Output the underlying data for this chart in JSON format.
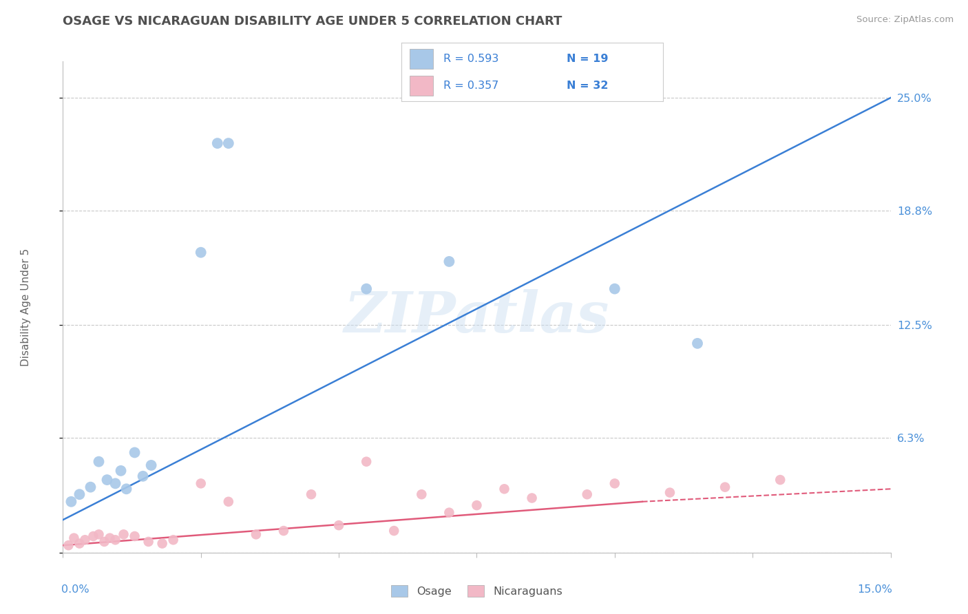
{
  "title": "OSAGE VS NICARAGUAN DISABILITY AGE UNDER 5 CORRELATION CHART",
  "source": "Source: ZipAtlas.com",
  "ylabel": "Disability Age Under 5",
  "ytick_values": [
    0,
    6.3,
    12.5,
    18.8,
    25.0
  ],
  "xlim": [
    0,
    15.0
  ],
  "ylim": [
    0,
    27.0
  ],
  "legend_labels": [
    "Osage",
    "Nicaraguans"
  ],
  "osage_color": "#a8c8e8",
  "osage_line_color": "#3a7fd5",
  "nicaraguan_color": "#f2b8c6",
  "nicaraguan_line_color": "#e05a7a",
  "background_color": "#ffffff",
  "grid_color": "#c8c8c8",
  "title_color": "#505050",
  "axis_label_color": "#4a90d9",
  "watermark_text": "ZIPatlas",
  "osage_x": [
    0.15,
    0.3,
    0.5,
    0.65,
    0.8,
    0.95,
    1.05,
    1.15,
    1.3,
    1.45,
    1.6,
    2.8,
    3.0,
    2.5,
    5.5,
    7.0,
    10.0,
    11.5
  ],
  "osage_y": [
    2.8,
    3.2,
    3.6,
    5.0,
    4.0,
    3.8,
    4.5,
    3.5,
    5.5,
    4.2,
    4.8,
    22.5,
    22.5,
    16.5,
    14.5,
    16.0,
    14.5,
    11.5
  ],
  "osage_trend_x0": 0.0,
  "osage_trend_y0": 1.8,
  "osage_trend_x1": 15.0,
  "osage_trend_y1": 25.0,
  "nicaraguan_x": [
    0.1,
    0.2,
    0.3,
    0.4,
    0.55,
    0.65,
    0.75,
    0.85,
    0.95,
    1.1,
    1.3,
    1.55,
    1.8,
    2.0,
    2.5,
    3.0,
    3.5,
    4.0,
    4.5,
    5.0,
    5.5,
    6.0,
    6.5,
    7.0,
    7.5,
    8.0,
    8.5,
    9.5,
    10.0,
    11.0,
    12.0,
    13.0
  ],
  "nicaraguan_y": [
    0.4,
    0.8,
    0.5,
    0.7,
    0.9,
    1.0,
    0.6,
    0.8,
    0.7,
    1.0,
    0.9,
    0.6,
    0.5,
    0.7,
    3.8,
    2.8,
    1.0,
    1.2,
    3.2,
    1.5,
    5.0,
    1.2,
    3.2,
    2.2,
    2.6,
    3.5,
    3.0,
    3.2,
    3.8,
    3.3,
    3.6,
    4.0
  ],
  "nicaraguan_solid_x0": 0.0,
  "nicaraguan_solid_y0": 0.4,
  "nicaraguan_solid_x1": 10.5,
  "nicaraguan_solid_y1": 2.8,
  "nicaraguan_dash_x0": 10.5,
  "nicaraguan_dash_y0": 2.8,
  "nicaraguan_dash_x1": 15.0,
  "nicaraguan_dash_y1": 3.5
}
